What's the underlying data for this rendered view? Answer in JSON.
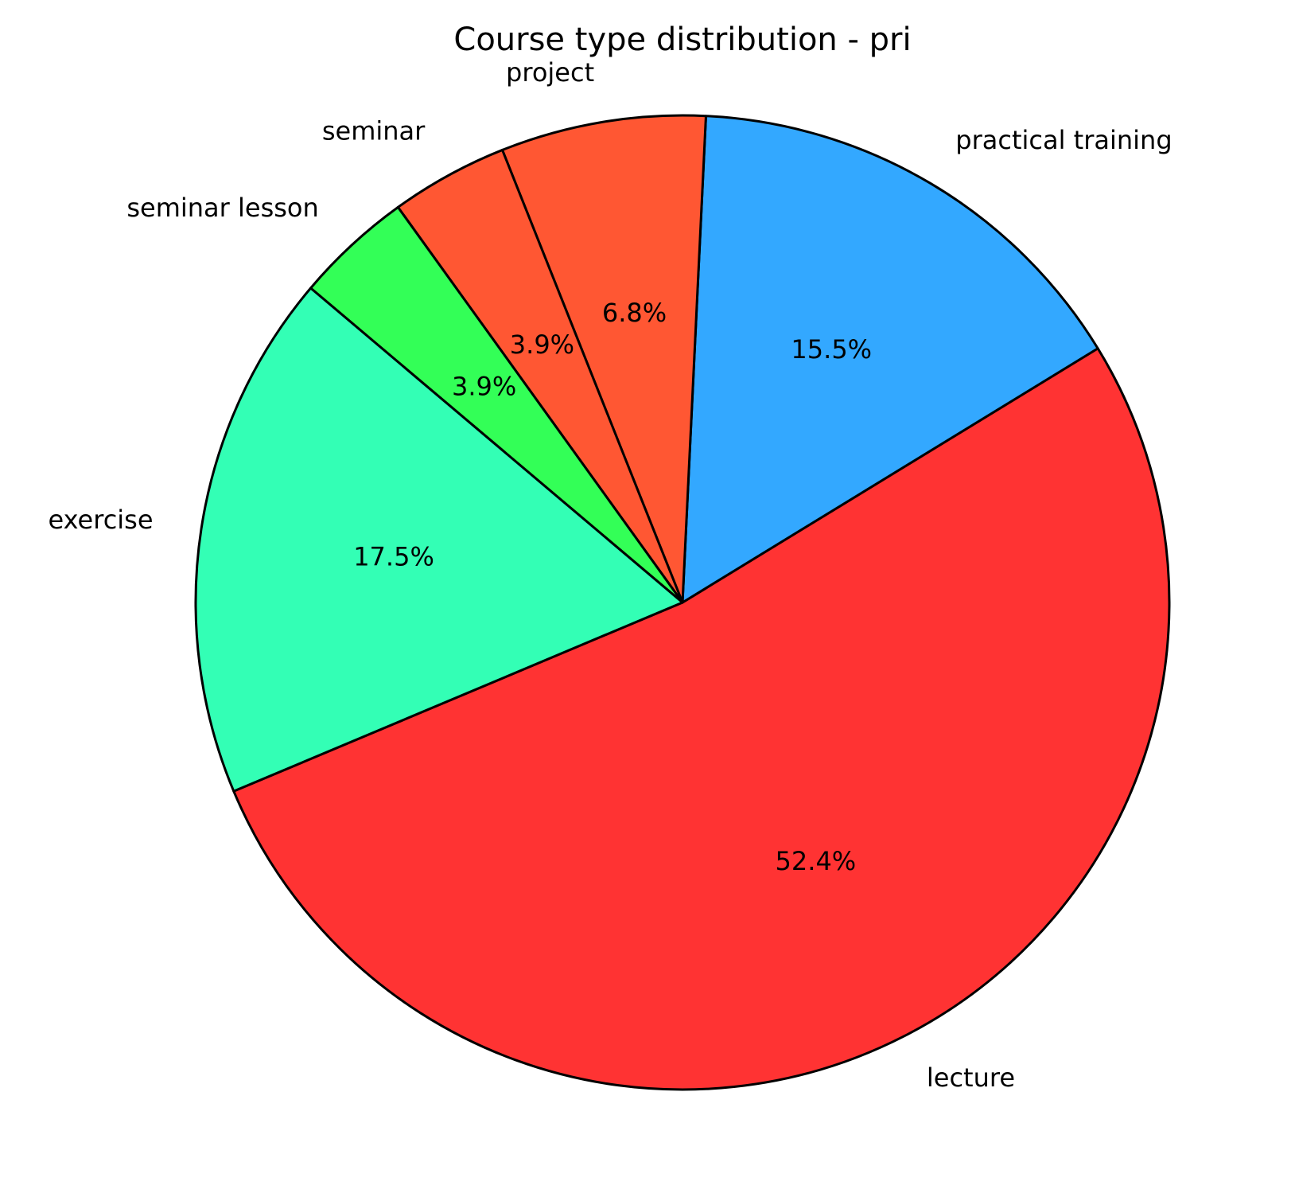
{
  "chart_data": {
    "type": "pie",
    "title": "Course type distribution - pri",
    "categories": [
      "lecture",
      "practical training",
      "project",
      "seminar",
      "seminar lesson",
      "exercise"
    ],
    "values": [
      52.4,
      15.5,
      6.8,
      3.9,
      3.9,
      17.5
    ],
    "value_labels": [
      "52.4%",
      "15.5%",
      "6.8%",
      "3.9%",
      "3.9%",
      "17.5%"
    ],
    "colors": [
      "#ff3333",
      "#33a8ff",
      "#ff5733",
      "#ff5733",
      "#33ff57",
      "#33ffb5"
    ]
  }
}
